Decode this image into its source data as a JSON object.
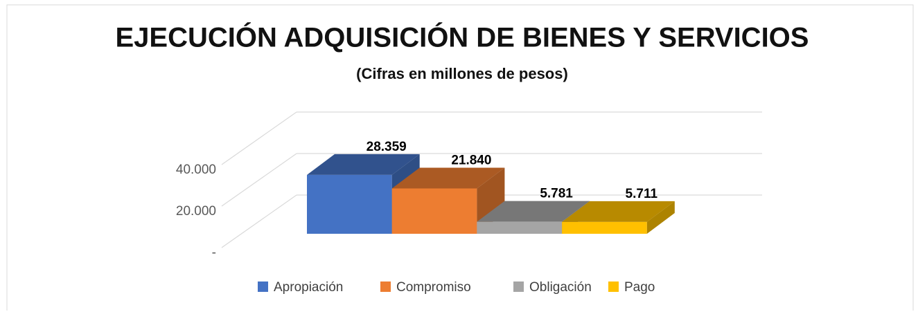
{
  "chart_data": {
    "type": "bar3d",
    "title": "EJECUCIÓN ADQUISICIÓN DE BIENES  Y SERVICIOS",
    "subtitle": "(Cifras en millones de pesos)",
    "categories": [
      "Apropiación",
      "Compromiso",
      "Obligación",
      "Pago"
    ],
    "values": [
      28359,
      21840,
      5781,
      5711
    ],
    "value_labels": [
      "28.359",
      "21.840",
      "5.781",
      "5.711"
    ],
    "colors": [
      "#4472c4",
      "#ed7d31",
      "#a5a5a5",
      "#ffc000"
    ],
    "ylim": [
      0,
      40000
    ],
    "yticks": [
      {
        "value": 0,
        "label": "-"
      },
      {
        "value": 20000,
        "label": "20.000"
      },
      {
        "value": 40000,
        "label": "40.000"
      }
    ],
    "grid": true,
    "legend": "bottom"
  }
}
